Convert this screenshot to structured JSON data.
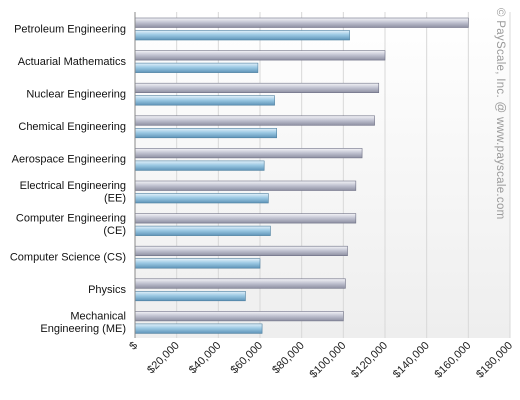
{
  "watermark": "© PayScale, Inc. @ www.payscale.com",
  "colors": {
    "series_high": "#b7b9c9",
    "series_low": "#8fbfdc",
    "grid": "#d8d8d8",
    "plot_bg_top": "#ffffff",
    "plot_bg_bottom": "#efefef"
  },
  "chart_data": {
    "type": "bar",
    "orientation": "horizontal",
    "categories": [
      [
        "Petroleum Engineering"
      ],
      [
        "Actuarial Mathematics"
      ],
      [
        "Nuclear Engineering"
      ],
      [
        "Chemical Engineering"
      ],
      [
        "Aerospace Engineering"
      ],
      [
        "Electrical Engineering",
        "(EE)"
      ],
      [
        "Computer Engineering",
        "(CE)"
      ],
      [
        "Computer Science (CS)"
      ],
      [
        "Physics"
      ],
      [
        "Mechanical",
        "Engineering (ME)"
      ]
    ],
    "series": [
      {
        "values": [
          160000,
          120000,
          117000,
          115000,
          109000,
          106000,
          106000,
          102000,
          101000,
          100000
        ]
      },
      {
        "values": [
          103000,
          59000,
          67000,
          68000,
          62000,
          64000,
          65000,
          60000,
          53000,
          61000
        ]
      }
    ],
    "xlim": [
      0,
      180000
    ],
    "xticks": [
      0,
      20000,
      40000,
      60000,
      80000,
      100000,
      120000,
      140000,
      160000,
      180000
    ],
    "xtick_labels": [
      "$",
      "$20,000",
      "$40,000",
      "$60,000",
      "$80,000",
      "$100,000",
      "$120,000",
      "$140,000",
      "$160,000",
      "$180,000"
    ],
    "grid": true,
    "title": "",
    "xlabel": "",
    "ylabel": ""
  }
}
